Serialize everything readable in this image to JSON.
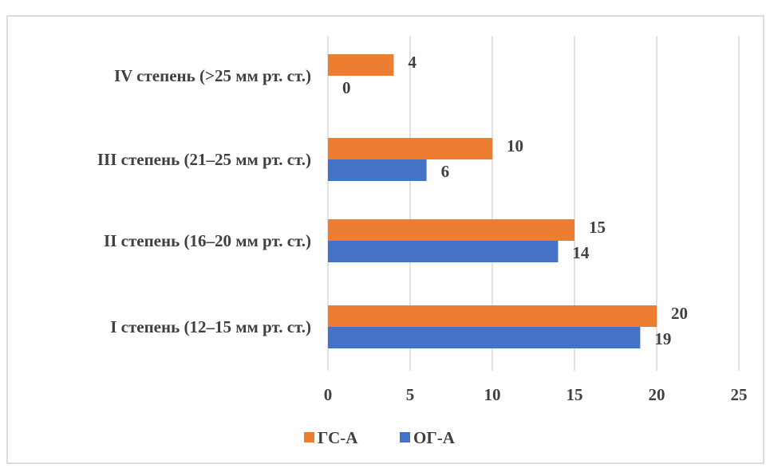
{
  "chart_data": {
    "type": "bar",
    "orientation": "horizontal",
    "categories": [
      "I степень (12–15 мм рт. ст.)",
      "II степень (16–20 мм рт. ст.)",
      "III степень (21–25 мм рт. ст.)",
      "IV степень (>25 мм рт. ст.)"
    ],
    "series": [
      {
        "name": "ГС-А",
        "color": "#ed7d31",
        "values": [
          20,
          15,
          10,
          4
        ]
      },
      {
        "name": "ОГ-А",
        "color": "#4472c4",
        "values": [
          19,
          14,
          6,
          0
        ]
      }
    ],
    "xlim": [
      0,
      25
    ],
    "xticks": [
      0,
      5,
      10,
      15,
      20,
      25
    ],
    "grid": true,
    "legend_position": "bottom",
    "title": "",
    "xlabel": "",
    "ylabel": ""
  }
}
